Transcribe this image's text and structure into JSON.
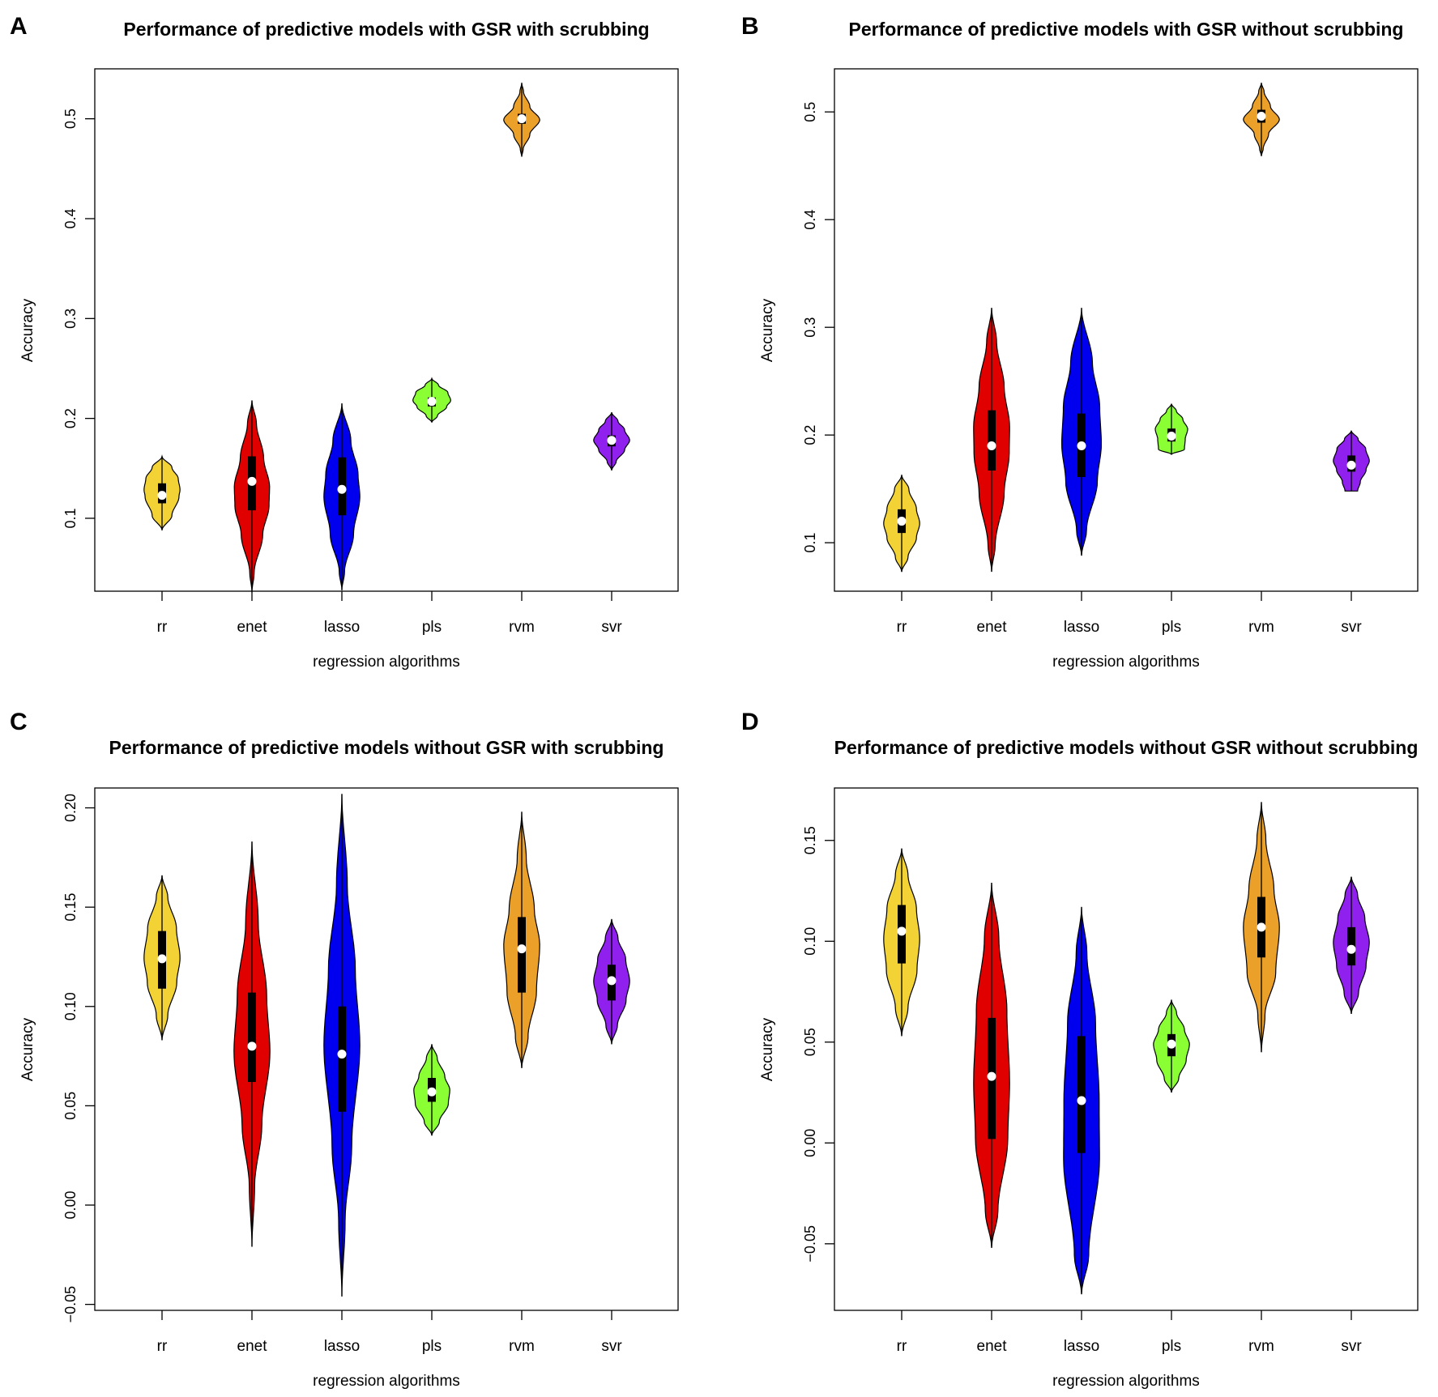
{
  "chart_data": [
    {
      "id": "A",
      "type": "violin",
      "title": "Performance of predictive models with GSR with scrubbing",
      "xlabel": "regression algorithms",
      "ylabel": "Accuracy",
      "ylim": [
        0.027,
        0.55
      ],
      "yticks": [
        0.1,
        0.2,
        0.3,
        0.4,
        0.5
      ],
      "ytick_labels": [
        "0.1",
        "0.2",
        "0.3",
        "0.4",
        "0.5"
      ],
      "categories": [
        "rr",
        "enet",
        "lasso",
        "pls",
        "rvm",
        "svr"
      ],
      "colors": [
        "#f2d235",
        "#e10000",
        "#0000ee",
        "#8aff33",
        "#eba029",
        "#8f20ee"
      ],
      "violins": [
        {
          "min": 0.088,
          "max": 0.162,
          "q1": 0.115,
          "median": 0.123,
          "q3": 0.135,
          "width": 0.4,
          "profile": [
            [
              0,
              0
            ],
            [
              0.2,
              0.55
            ],
            [
              0.45,
              0.94
            ],
            [
              0.55,
              1
            ],
            [
              0.7,
              0.9
            ],
            [
              0.85,
              0.55
            ],
            [
              1,
              0
            ]
          ]
        },
        {
          "min": 0.026,
          "max": 0.218,
          "q1": 0.108,
          "median": 0.137,
          "q3": 0.162,
          "width": 0.4,
          "profile": [
            [
              0,
              0
            ],
            [
              0.1,
              0.12
            ],
            [
              0.3,
              0.6
            ],
            [
              0.45,
              0.95
            ],
            [
              0.55,
              0.98
            ],
            [
              0.7,
              0.65
            ],
            [
              0.88,
              0.25
            ],
            [
              1,
              0
            ]
          ]
        },
        {
          "min": 0.028,
          "max": 0.215,
          "q1": 0.103,
          "median": 0.129,
          "q3": 0.161,
          "width": 0.4,
          "profile": [
            [
              0,
              0
            ],
            [
              0.1,
              0.15
            ],
            [
              0.3,
              0.65
            ],
            [
              0.5,
              1
            ],
            [
              0.62,
              0.9
            ],
            [
              0.8,
              0.5
            ],
            [
              1,
              0
            ]
          ]
        },
        {
          "min": 0.196,
          "max": 0.24,
          "q1": 0.212,
          "median": 0.217,
          "q3": 0.221,
          "width": 0.42,
          "profile": [
            [
              0,
              0
            ],
            [
              0.15,
              0.3
            ],
            [
              0.35,
              0.78
            ],
            [
              0.5,
              1
            ],
            [
              0.68,
              0.85
            ],
            [
              0.85,
              0.35
            ],
            [
              1,
              0
            ]
          ]
        },
        {
          "min": 0.462,
          "max": 0.536,
          "q1": 0.495,
          "median": 0.5,
          "q3": 0.505,
          "width": 0.4,
          "profile": [
            [
              0,
              0
            ],
            [
              0.1,
              0.08
            ],
            [
              0.3,
              0.45
            ],
            [
              0.5,
              1
            ],
            [
              0.68,
              0.45
            ],
            [
              0.88,
              0.1
            ],
            [
              1,
              0
            ]
          ]
        },
        {
          "min": 0.148,
          "max": 0.206,
          "q1": 0.172,
          "median": 0.178,
          "q3": 0.183,
          "width": 0.4,
          "profile": [
            [
              0,
              0
            ],
            [
              0.15,
              0.25
            ],
            [
              0.35,
              0.72
            ],
            [
              0.52,
              1
            ],
            [
              0.7,
              0.72
            ],
            [
              0.85,
              0.35
            ],
            [
              1,
              0
            ]
          ]
        }
      ]
    },
    {
      "id": "B",
      "type": "violin",
      "title": "Performance of predictive models with GSR without scrubbing",
      "xlabel": "regression algorithms",
      "ylabel": "Accuracy",
      "ylim": [
        0.055,
        0.54
      ],
      "yticks": [
        0.1,
        0.2,
        0.3,
        0.4,
        0.5
      ],
      "ytick_labels": [
        "0.1",
        "0.2",
        "0.3",
        "0.4",
        "0.5"
      ],
      "categories": [
        "rr",
        "enet",
        "lasso",
        "pls",
        "rvm",
        "svr"
      ],
      "colors": [
        "#f2d235",
        "#e10000",
        "#0000ee",
        "#8aff33",
        "#eba029",
        "#8f20ee"
      ],
      "violins": [
        {
          "min": 0.073,
          "max": 0.163,
          "q1": 0.109,
          "median": 0.12,
          "q3": 0.131,
          "width": 0.4,
          "profile": [
            [
              0,
              0
            ],
            [
              0.15,
              0.35
            ],
            [
              0.35,
              0.82
            ],
            [
              0.5,
              1
            ],
            [
              0.65,
              0.82
            ],
            [
              0.85,
              0.4
            ],
            [
              1,
              0
            ]
          ]
        },
        {
          "min": 0.073,
          "max": 0.318,
          "q1": 0.167,
          "median": 0.19,
          "q3": 0.223,
          "width": 0.4,
          "profile": [
            [
              0,
              0
            ],
            [
              0.1,
              0.2
            ],
            [
              0.3,
              0.7
            ],
            [
              0.45,
              0.98
            ],
            [
              0.55,
              1
            ],
            [
              0.7,
              0.7
            ],
            [
              0.87,
              0.28
            ],
            [
              1,
              0
            ]
          ]
        },
        {
          "min": 0.088,
          "max": 0.318,
          "q1": 0.161,
          "median": 0.19,
          "q3": 0.22,
          "width": 0.44,
          "profile": [
            [
              0,
              0
            ],
            [
              0.1,
              0.25
            ],
            [
              0.3,
              0.8
            ],
            [
              0.45,
              1
            ],
            [
              0.6,
              0.92
            ],
            [
              0.78,
              0.55
            ],
            [
              1,
              0
            ]
          ]
        },
        {
          "min": 0.182,
          "max": 0.229,
          "q1": 0.194,
          "median": 0.199,
          "q3": 0.206,
          "width": 0.36,
          "profile": [
            [
              0,
              0
            ],
            [
              0.1,
              0.8
            ],
            [
              0.3,
              0.85
            ],
            [
              0.5,
              1
            ],
            [
              0.7,
              0.7
            ],
            [
              0.86,
              0.3
            ],
            [
              1,
              0
            ]
          ]
        },
        {
          "min": 0.459,
          "max": 0.527,
          "q1": 0.49,
          "median": 0.496,
          "q3": 0.502,
          "width": 0.4,
          "profile": [
            [
              0,
              0
            ],
            [
              0.1,
              0.1
            ],
            [
              0.3,
              0.4
            ],
            [
              0.5,
              1
            ],
            [
              0.68,
              0.5
            ],
            [
              0.88,
              0.15
            ],
            [
              1,
              0
            ]
          ]
        },
        {
          "min": 0.148,
          "max": 0.204,
          "q1": 0.166,
          "median": 0.172,
          "q3": 0.181,
          "width": 0.4,
          "profile": [
            [
              0,
              0.35
            ],
            [
              0.15,
              0.5
            ],
            [
              0.35,
              0.82
            ],
            [
              0.5,
              1
            ],
            [
              0.7,
              0.8
            ],
            [
              0.86,
              0.38
            ],
            [
              1,
              0
            ]
          ]
        }
      ]
    },
    {
      "id": "C",
      "type": "violin",
      "title": "Performance of predictive models without GSR with scrubbing",
      "xlabel": "regression algorithms",
      "ylabel": "Accuracy",
      "ylim": [
        -0.053,
        0.21
      ],
      "yticks": [
        -0.05,
        0.0,
        0.05,
        0.1,
        0.15,
        0.2
      ],
      "ytick_labels": [
        "−0.05",
        "0.00",
        "0.05",
        "0.10",
        "0.15",
        "0.20"
      ],
      "categories": [
        "rr",
        "enet",
        "lasso",
        "pls",
        "rvm",
        "svr"
      ],
      "colors": [
        "#f2d235",
        "#e10000",
        "#0000ee",
        "#8aff33",
        "#eba029",
        "#8f20ee"
      ],
      "violins": [
        {
          "min": 0.083,
          "max": 0.166,
          "q1": 0.109,
          "median": 0.124,
          "q3": 0.138,
          "width": 0.4,
          "profile": [
            [
              0,
              0
            ],
            [
              0.15,
              0.32
            ],
            [
              0.35,
              0.82
            ],
            [
              0.5,
              1
            ],
            [
              0.68,
              0.8
            ],
            [
              0.87,
              0.32
            ],
            [
              1,
              0
            ]
          ]
        },
        {
          "min": -0.021,
          "max": 0.183,
          "q1": 0.062,
          "median": 0.08,
          "q3": 0.107,
          "width": 0.4,
          "profile": [
            [
              0,
              0
            ],
            [
              0.15,
              0.15
            ],
            [
              0.3,
              0.55
            ],
            [
              0.48,
              1
            ],
            [
              0.62,
              0.82
            ],
            [
              0.8,
              0.35
            ],
            [
              1,
              0
            ]
          ]
        },
        {
          "min": -0.046,
          "max": 0.207,
          "q1": 0.047,
          "median": 0.076,
          "q3": 0.1,
          "width": 0.4,
          "profile": [
            [
              0,
              0
            ],
            [
              0.15,
              0.18
            ],
            [
              0.3,
              0.55
            ],
            [
              0.5,
              1
            ],
            [
              0.65,
              0.75
            ],
            [
              0.82,
              0.3
            ],
            [
              1,
              0
            ]
          ]
        },
        {
          "min": 0.035,
          "max": 0.081,
          "q1": 0.052,
          "median": 0.057,
          "q3": 0.064,
          "width": 0.4,
          "profile": [
            [
              0,
              0
            ],
            [
              0.15,
              0.42
            ],
            [
              0.35,
              0.92
            ],
            [
              0.5,
              1
            ],
            [
              0.65,
              0.72
            ],
            [
              0.85,
              0.3
            ],
            [
              1,
              0
            ]
          ]
        },
        {
          "min": 0.069,
          "max": 0.198,
          "q1": 0.107,
          "median": 0.129,
          "q3": 0.145,
          "width": 0.4,
          "profile": [
            [
              0,
              0
            ],
            [
              0.12,
              0.35
            ],
            [
              0.3,
              0.82
            ],
            [
              0.48,
              1
            ],
            [
              0.62,
              0.7
            ],
            [
              0.82,
              0.25
            ],
            [
              1,
              0
            ]
          ]
        },
        {
          "min": 0.081,
          "max": 0.144,
          "q1": 0.103,
          "median": 0.113,
          "q3": 0.121,
          "width": 0.4,
          "profile": [
            [
              0,
              0
            ],
            [
              0.15,
              0.32
            ],
            [
              0.35,
              0.8
            ],
            [
              0.5,
              1
            ],
            [
              0.68,
              0.78
            ],
            [
              0.85,
              0.35
            ],
            [
              1,
              0
            ]
          ]
        }
      ]
    },
    {
      "id": "D",
      "type": "violin",
      "title": "Performance of predictive models without GSR without scrubbing",
      "xlabel": "regression algorithms",
      "ylabel": "Accuracy",
      "ylim": [
        -0.083,
        0.176
      ],
      "yticks": [
        -0.05,
        0.0,
        0.05,
        0.1,
        0.15
      ],
      "ytick_labels": [
        "−0.05",
        "0.00",
        "0.05",
        "0.10",
        "0.15"
      ],
      "categories": [
        "rr",
        "enet",
        "lasso",
        "pls",
        "rvm",
        "svr"
      ],
      "colors": [
        "#f2d235",
        "#e10000",
        "#0000ee",
        "#8aff33",
        "#eba029",
        "#8f20ee"
      ],
      "violins": [
        {
          "min": 0.053,
          "max": 0.146,
          "q1": 0.089,
          "median": 0.105,
          "q3": 0.118,
          "width": 0.4,
          "profile": [
            [
              0,
              0
            ],
            [
              0.15,
              0.35
            ],
            [
              0.35,
              0.85
            ],
            [
              0.52,
              1
            ],
            [
              0.68,
              0.82
            ],
            [
              0.86,
              0.35
            ],
            [
              1,
              0
            ]
          ]
        },
        {
          "min": -0.052,
          "max": 0.129,
          "q1": 0.002,
          "median": 0.033,
          "q3": 0.062,
          "width": 0.4,
          "profile": [
            [
              0,
              0
            ],
            [
              0.1,
              0.35
            ],
            [
              0.3,
              0.9
            ],
            [
              0.45,
              1
            ],
            [
              0.65,
              0.85
            ],
            [
              0.85,
              0.4
            ],
            [
              1,
              0
            ]
          ]
        },
        {
          "min": -0.075,
          "max": 0.117,
          "q1": -0.005,
          "median": 0.021,
          "q3": 0.053,
          "width": 0.4,
          "profile": [
            [
              0,
              0
            ],
            [
              0.1,
              0.4
            ],
            [
              0.35,
              1
            ],
            [
              0.5,
              0.98
            ],
            [
              0.7,
              0.78
            ],
            [
              0.88,
              0.3
            ],
            [
              1,
              0
            ]
          ]
        },
        {
          "min": 0.025,
          "max": 0.071,
          "q1": 0.043,
          "median": 0.049,
          "q3": 0.054,
          "width": 0.4,
          "profile": [
            [
              0,
              0
            ],
            [
              0.15,
              0.4
            ],
            [
              0.35,
              0.82
            ],
            [
              0.52,
              1
            ],
            [
              0.68,
              0.72
            ],
            [
              0.86,
              0.28
            ],
            [
              1,
              0
            ]
          ]
        },
        {
          "min": 0.045,
          "max": 0.169,
          "q1": 0.092,
          "median": 0.107,
          "q3": 0.122,
          "width": 0.4,
          "profile": [
            [
              0,
              0
            ],
            [
              0.15,
              0.2
            ],
            [
              0.32,
              0.8
            ],
            [
              0.5,
              1
            ],
            [
              0.65,
              0.7
            ],
            [
              0.85,
              0.25
            ],
            [
              1,
              0
            ]
          ]
        },
        {
          "min": 0.064,
          "max": 0.132,
          "q1": 0.088,
          "median": 0.096,
          "q3": 0.107,
          "width": 0.4,
          "profile": [
            [
              0,
              0
            ],
            [
              0.15,
              0.4
            ],
            [
              0.35,
              0.82
            ],
            [
              0.52,
              1
            ],
            [
              0.7,
              0.75
            ],
            [
              0.87,
              0.35
            ],
            [
              1,
              0
            ]
          ]
        }
      ]
    }
  ]
}
